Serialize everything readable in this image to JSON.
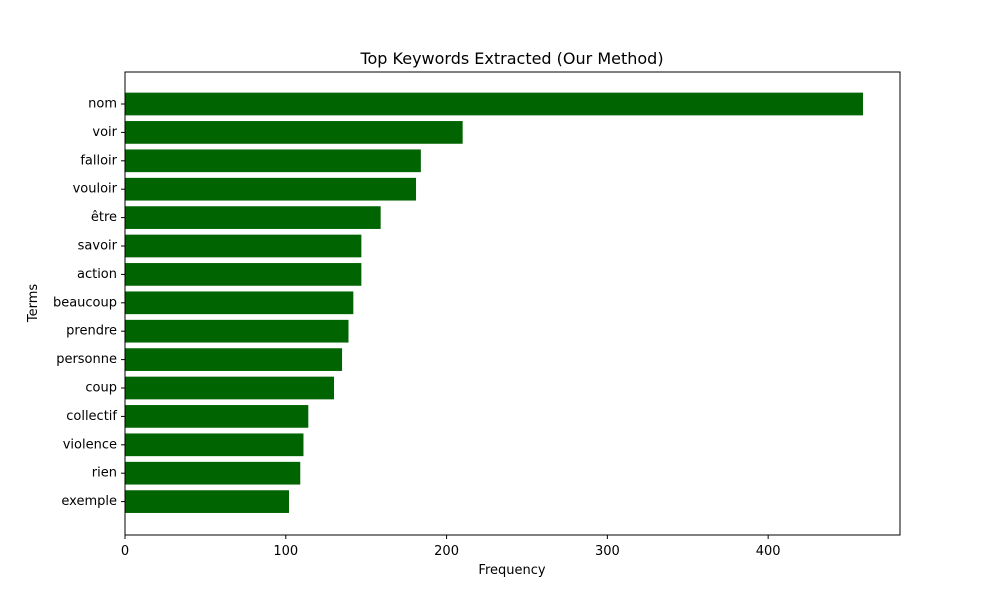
{
  "chart_data": {
    "type": "bar",
    "orientation": "horizontal",
    "title": "Top Keywords Extracted (Our Method)",
    "xlabel": "Frequency",
    "ylabel": "Terms",
    "categories": [
      "nom",
      "voir",
      "falloir",
      "vouloir",
      "être",
      "savoir",
      "action",
      "beaucoup",
      "prendre",
      "personne",
      "coup",
      "collectif",
      "violence",
      "rien",
      "exemple"
    ],
    "values": [
      459,
      210,
      184,
      181,
      159,
      147,
      147,
      142,
      139,
      135,
      130,
      114,
      111,
      109,
      102
    ],
    "xlim": [
      0,
      482
    ],
    "xticks": [
      "0",
      "100",
      "200",
      "300",
      "400"
    ],
    "grid": false,
    "bar_color": "#006400"
  }
}
